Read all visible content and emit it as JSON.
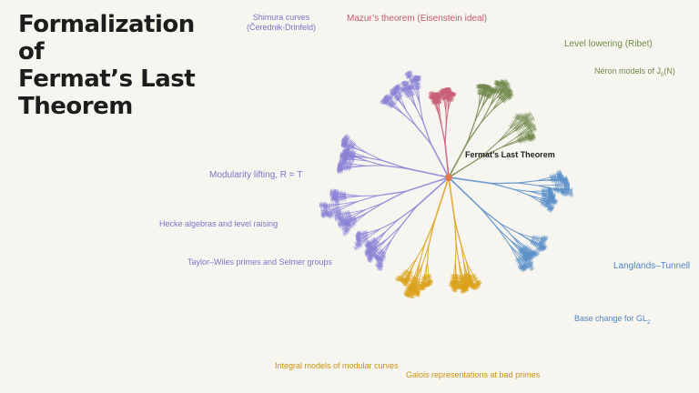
{
  "title": {
    "line1": "Formalization of",
    "line2": "Fermat’s Last",
    "line3": "Theorem"
  },
  "colors": {
    "background": "#f7f5ef",
    "root": "#e07a4f",
    "purple": "#8b84d6",
    "red": "#c95f78",
    "green": "#71884d",
    "blue": "#5b8fc9",
    "orange": "#dba21a"
  },
  "root_label": "Fermat’s Last Theorem",
  "labels": {
    "shimura_1": "Shimura curves",
    "shimura_2": "(Čerednik-Drinfeld)",
    "mazur": "Mazur’s theorem (Eisenstein ideal)",
    "level_lowering": "Level lowering (Ribet)",
    "neron_pre": "Néron models of J",
    "neron_sub": "0",
    "neron_post": "(N)",
    "modularity_lifting": "Modularity lifting, R = T",
    "hecke": "Hecke algebras and level raising",
    "taylor_wiles": "Taylor–Wiles primes and Selmer groups",
    "langlands": "Langlands–Tunnell",
    "base_change_pre": "Base change for GL",
    "base_change_sub": "2",
    "integral_models": "Integral models of modular curves",
    "galois": "Galois representations at bad primes"
  }
}
